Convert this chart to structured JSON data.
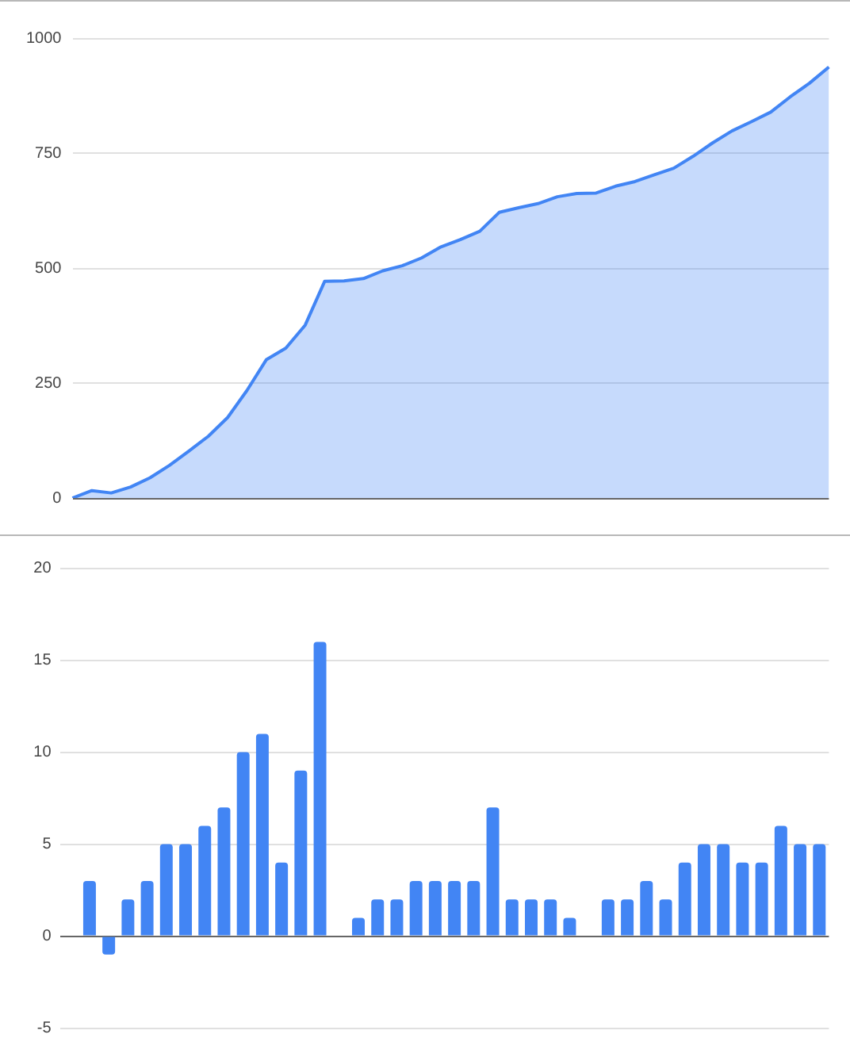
{
  "chart_data": [
    {
      "type": "area",
      "categories": [
        null,
        null,
        null,
        null,
        null,
        null,
        null,
        null,
        null,
        null,
        null,
        null,
        null,
        null,
        null,
        null,
        null,
        null,
        null,
        null,
        null,
        null,
        null,
        null,
        null,
        null,
        null,
        null,
        null,
        null,
        null,
        null,
        null,
        null,
        null,
        null,
        null,
        null,
        null,
        null
      ],
      "values": [
        0,
        16,
        11,
        24,
        44,
        71,
        102,
        134,
        175,
        234,
        301,
        326,
        376,
        471,
        472,
        477,
        494,
        505,
        522,
        546,
        562,
        580,
        621,
        631,
        640,
        655,
        662,
        663,
        678,
        688,
        703,
        717,
        743,
        772,
        798,
        818,
        839,
        872,
        902,
        937
      ],
      "color": "#4285f4",
      "ylim": [
        0,
        1000
      ],
      "yticks": [
        0,
        250,
        500,
        750,
        1000
      ],
      "grid": "y"
    },
    {
      "type": "bar",
      "categories": [
        null,
        null,
        null,
        null,
        null,
        null,
        null,
        null,
        null,
        null,
        null,
        null,
        null,
        null,
        null,
        null,
        null,
        null,
        null,
        null,
        null,
        null,
        null,
        null,
        null,
        null,
        null,
        null,
        null,
        null,
        null,
        null,
        null,
        null,
        null,
        null,
        null,
        null,
        null,
        null
      ],
      "values": [
        null,
        3,
        -1,
        2,
        3,
        5,
        5,
        6,
        7,
        10,
        11,
        4,
        9,
        16,
        0,
        1,
        2,
        2,
        3,
        3,
        3,
        3,
        7,
        2,
        2,
        2,
        1,
        0,
        2,
        2,
        3,
        2,
        4,
        5,
        5,
        4,
        4,
        6,
        5,
        5
      ],
      "color": "#4285f4",
      "ylim": [
        -5,
        20
      ],
      "yticks": [
        -5,
        0,
        5,
        10,
        15,
        20
      ],
      "grid": "y"
    }
  ]
}
